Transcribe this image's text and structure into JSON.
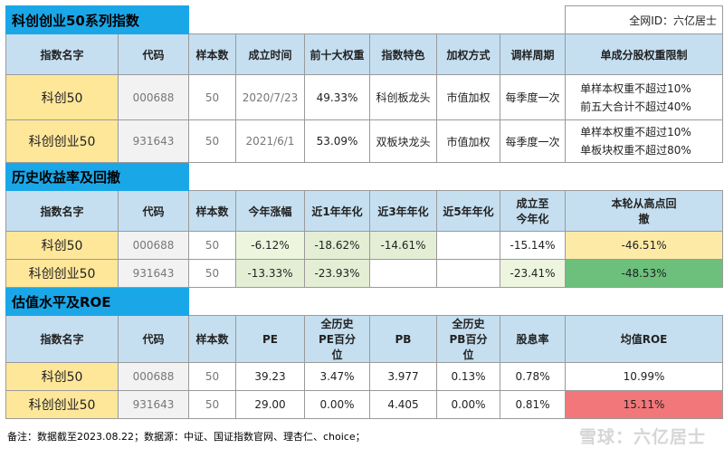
{
  "net_id": "全网ID：六亿居士",
  "sections": {
    "s1": "科创创业50系列指数",
    "s2": "历史收益率及回撤",
    "s3": "估值水平及ROE"
  },
  "t1": {
    "headers": [
      "指数名字",
      "代码",
      "样本数",
      "成立时间",
      "前十大权重",
      "指数特色",
      "加权方式",
      "调样周期",
      "单成分股权重限制"
    ],
    "rows": [
      {
        "name": "科创50",
        "code": "000688",
        "n": "50",
        "date": "2020/7/23",
        "top10": "49.33%",
        "feat": "科创板龙头",
        "weight": "市值加权",
        "cycle": "每季度一次",
        "lim1": "单样本权重不超过10%",
        "lim2": "前五大合计不超过40%"
      },
      {
        "name": "科创创业50",
        "code": "931643",
        "n": "50",
        "date": "2021/6/1",
        "top10": "53.09%",
        "feat": "双板块龙头",
        "weight": "市值加权",
        "cycle": "每季度一次",
        "lim1": "单样本权重不超过10%",
        "lim2": "单板块权重不超过80%"
      }
    ]
  },
  "t2": {
    "headers": [
      "指数名字",
      "代码",
      "样本数",
      "今年涨幅",
      "近1年年化",
      "近3年年化",
      "近5年年化",
      "成立至今年化",
      "本轮从高点回撤"
    ],
    "rows": [
      {
        "name": "科创50",
        "code": "000688",
        "n": "50",
        "ytd": "-6.12%",
        "y1": "-18.62%",
        "y3": "-14.61%",
        "y5": "",
        "since": "-15.14%",
        "dd": "-46.51%"
      },
      {
        "name": "科创创业50",
        "code": "931643",
        "n": "50",
        "ytd": "-13.33%",
        "y1": "-23.93%",
        "y3": "",
        "y5": "",
        "since": "-23.41%",
        "dd": "-48.53%"
      }
    ]
  },
  "t3": {
    "headers": [
      "指数名字",
      "代码",
      "样本数",
      "PE",
      "全历史PE百分位",
      "PB",
      "全历史PB百分位",
      "股息率",
      "均值ROE"
    ],
    "rows": [
      {
        "name": "科创50",
        "code": "000688",
        "n": "50",
        "pe": "39.23",
        "pep": "3.47%",
        "pb": "3.977",
        "pbp": "0.13%",
        "div": "0.78%",
        "roe": "10.99%"
      },
      {
        "name": "科创创业50",
        "code": "931643",
        "n": "50",
        "pe": "29.00",
        "pep": "0.00%",
        "pb": "4.405",
        "pbp": "0.00%",
        "div": "0.81%",
        "roe": "15.11%"
      }
    ]
  },
  "footnote": "备注：数据截至2023.08.22；数据源：中证、国证指数官网、理杏仁、choice；",
  "watermark": "雪球：六亿居士"
}
